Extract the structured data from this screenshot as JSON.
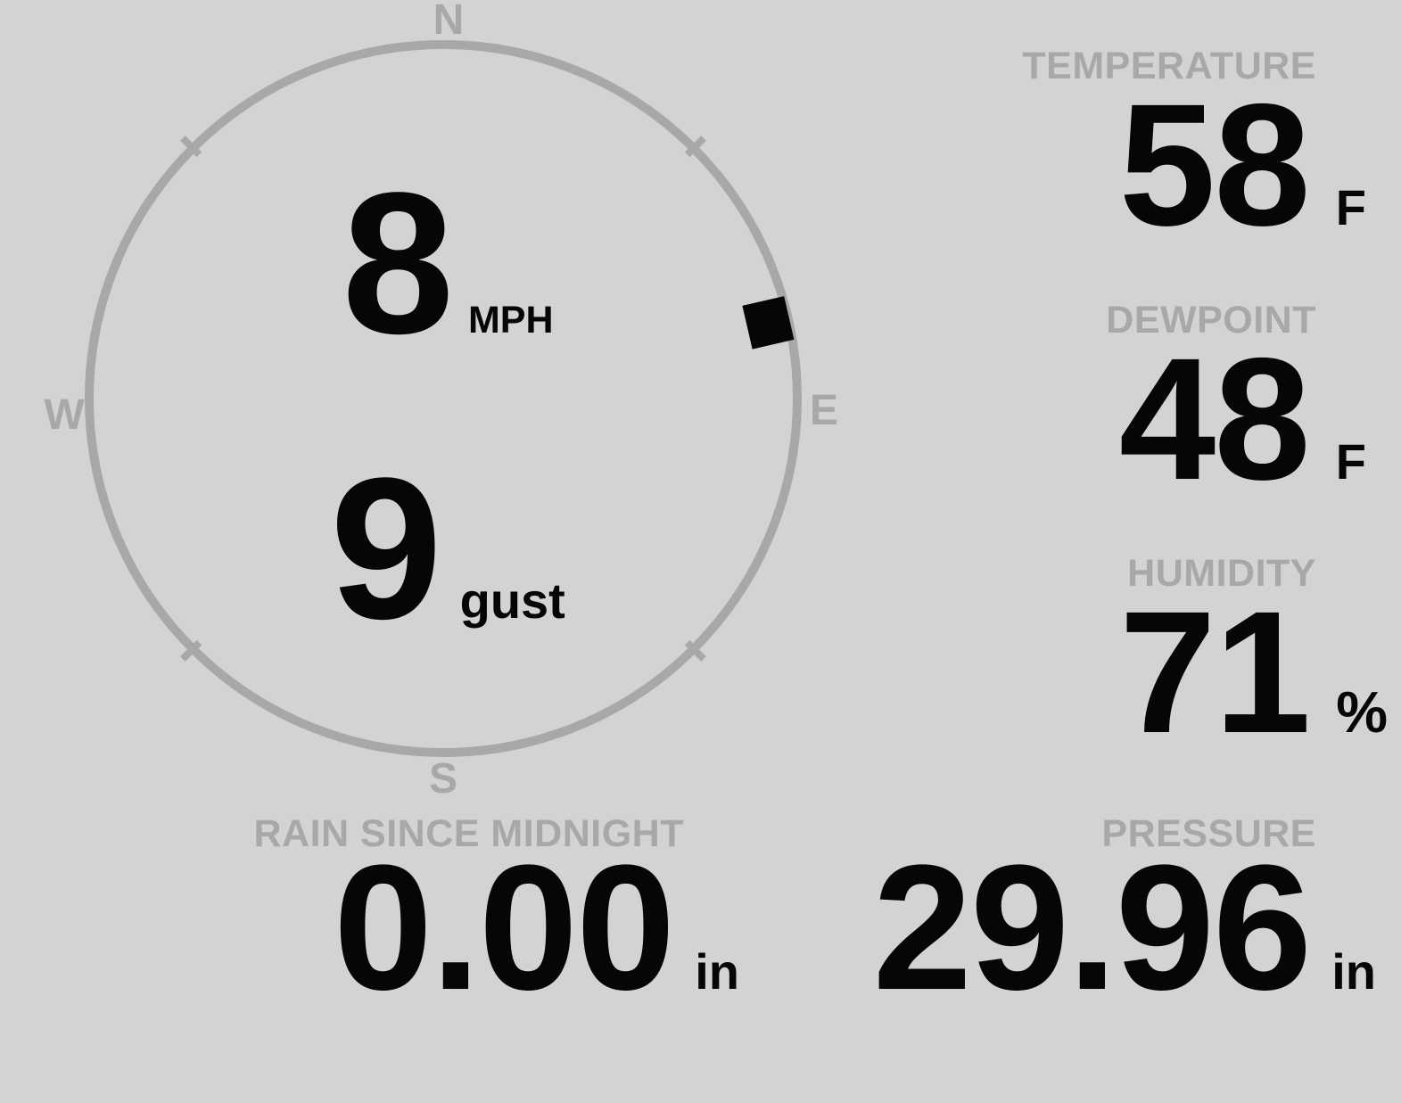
{
  "wind": {
    "speed": {
      "value": "8",
      "unit": "MPH"
    },
    "gust": {
      "value": "9",
      "unit": "gust"
    },
    "direction_degrees": 77,
    "compass": {
      "north": "N",
      "east": "E",
      "south": "S",
      "west": "W"
    }
  },
  "readings": {
    "temperature": {
      "label": "TEMPERATURE",
      "value": "58",
      "unit": "F"
    },
    "dewpoint": {
      "label": "DEWPOINT",
      "value": "48",
      "unit": "F"
    },
    "humidity": {
      "label": "HUMIDITY",
      "value": "71",
      "unit": "%"
    },
    "rain": {
      "label": "RAIN SINCE MIDNIGHT",
      "value": "0.00",
      "unit": "in"
    },
    "pressure": {
      "label": "PRESSURE",
      "value": "29.96",
      "unit": "in"
    }
  },
  "colors": {
    "background": "#d3d3d3",
    "muted": "#a8a8a8",
    "ink": "#060606"
  }
}
